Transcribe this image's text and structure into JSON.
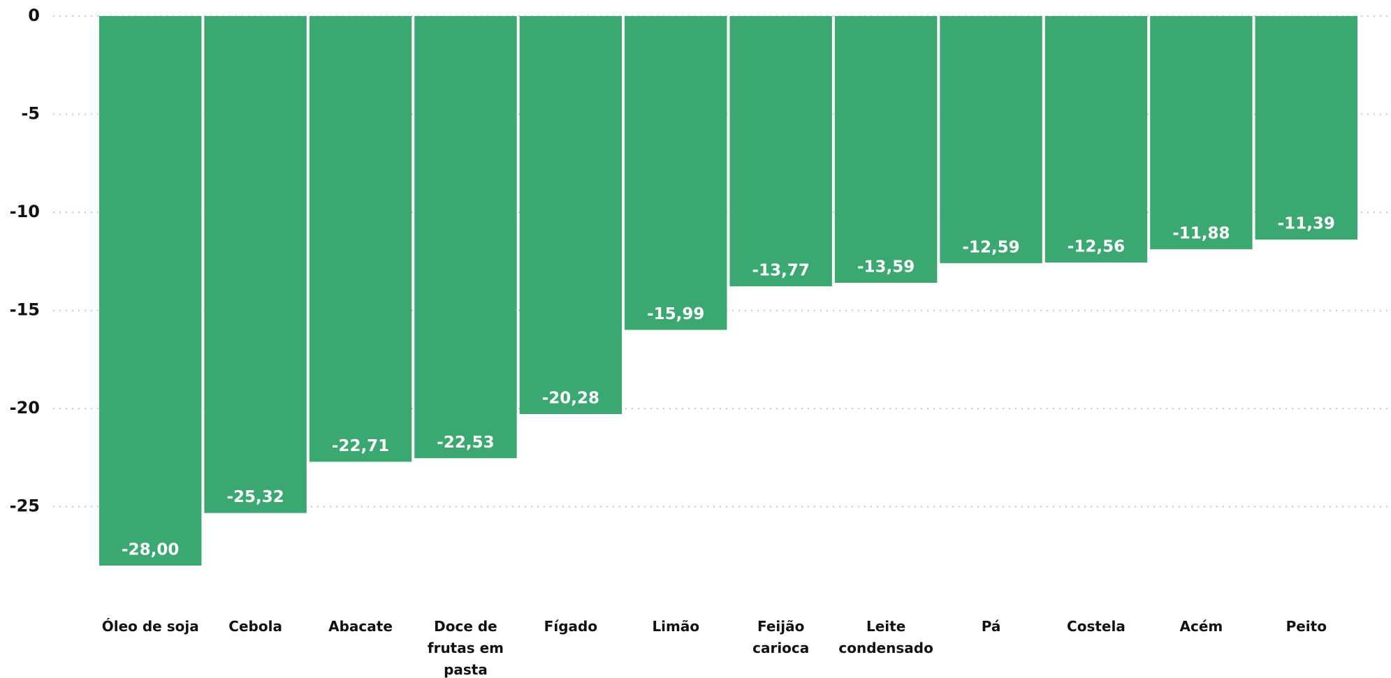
{
  "chart_data": {
    "type": "bar",
    "categories": [
      "Óleo de soja",
      "Cebola",
      "Abacate",
      "Doce de frutas em pasta",
      "Fígado",
      "Limão",
      "Feijão carioca",
      "Leite condensado",
      "Pá",
      "Costela",
      "Acém",
      "Peito"
    ],
    "values": [
      -28.0,
      -25.32,
      -22.71,
      -22.53,
      -20.28,
      -15.99,
      -13.77,
      -13.59,
      -12.59,
      -12.56,
      -11.88,
      -11.39
    ],
    "value_labels": [
      "-28,00",
      "-25,32",
      "-22,71",
      "-22,53",
      "-20,28",
      "-15,99",
      "-13,77",
      "-13,59",
      "-12,59",
      "-12,56",
      "-11,88",
      "-11,39"
    ],
    "color": "#3aa870",
    "ylim": [
      -28,
      0
    ],
    "yticks": [
      0,
      -5,
      -10,
      -15,
      -20,
      -25
    ],
    "grid": true
  }
}
